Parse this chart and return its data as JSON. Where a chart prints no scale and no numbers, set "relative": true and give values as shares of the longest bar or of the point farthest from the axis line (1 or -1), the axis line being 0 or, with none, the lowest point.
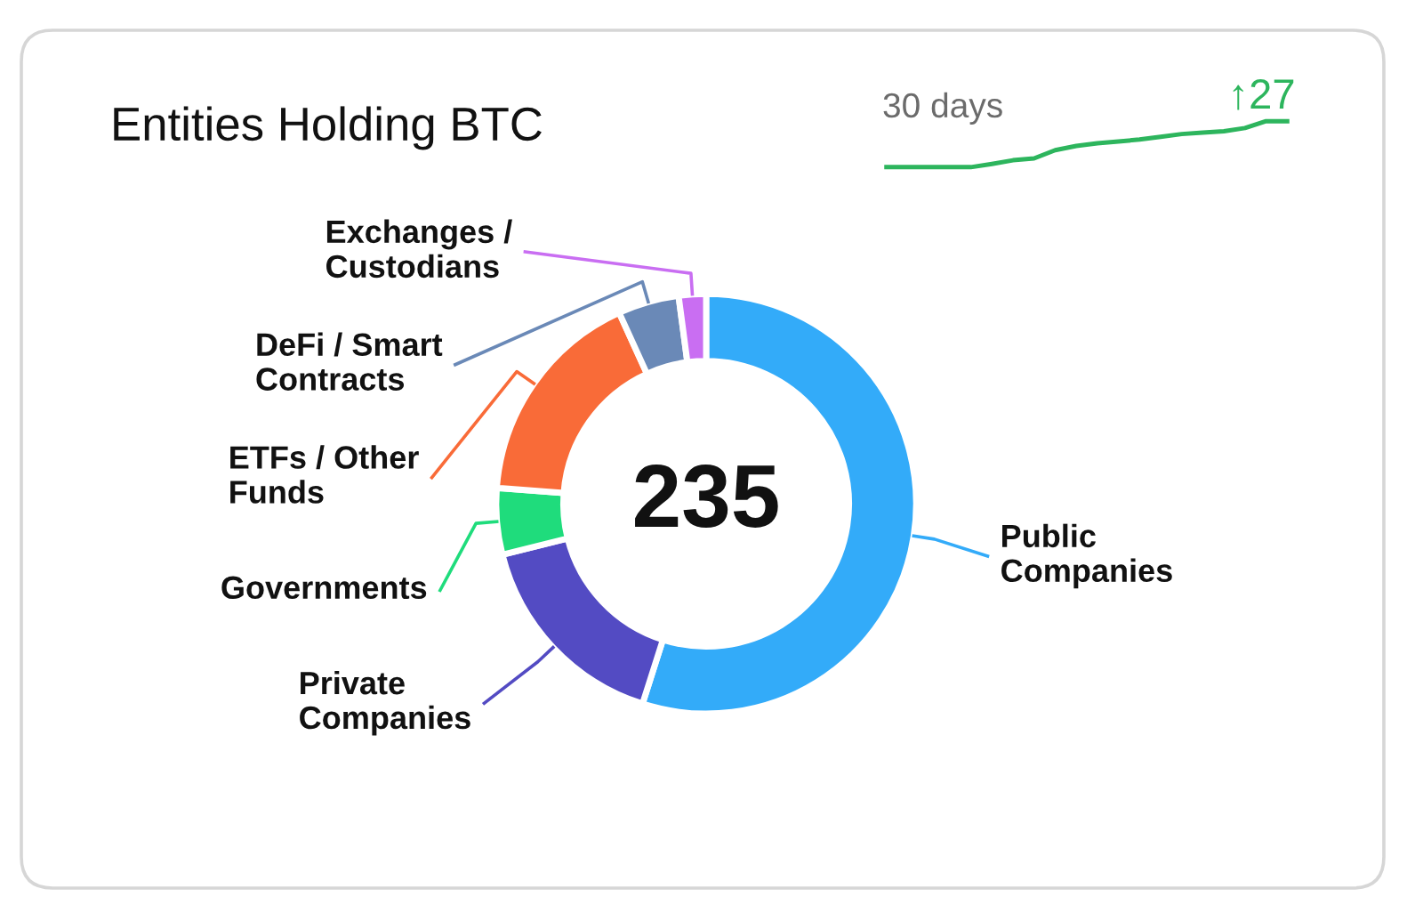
{
  "chart_data": [
    {
      "type": "donut",
      "title": "Entities Holding BTC",
      "categories": [
        "Public Companies",
        "Private Companies",
        "Governments",
        "ETFs / Other Funds",
        "DeFi / Smart Contracts",
        "Exchanges / Custodians"
      ],
      "values": [
        54.9,
        16.2,
        5.1,
        17.0,
        4.7,
        2.1
      ],
      "colors": [
        "#33abf9",
        "#534bc3",
        "#1fdc7c",
        "#f96b38",
        "#6a89b7",
        "#c96ef2"
      ],
      "annotations": [
        "235"
      ]
    },
    {
      "type": "line",
      "relative": true,
      "categories": [
        null,
        null,
        null,
        null,
        null,
        null,
        null,
        null,
        null,
        null,
        null,
        null,
        null,
        null,
        null,
        null,
        null,
        null,
        null,
        null
      ],
      "series": [
        {
          "color": "#2db55d",
          "values": [
            0,
            0,
            0,
            0,
            0,
            0.07,
            0.15,
            0.19,
            0.37,
            0.46,
            0.52,
            0.56,
            0.6,
            0.66,
            0.72,
            0.75,
            0.78,
            0.85,
            1.0,
            1.0
          ]
        }
      ],
      "annotations": [
        "30 days",
        "↑27"
      ]
    }
  ]
}
